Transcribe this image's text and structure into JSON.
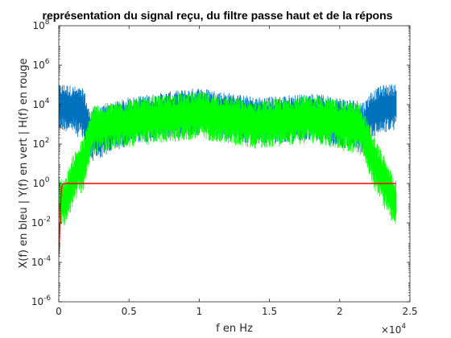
{
  "chart_data": {
    "type": "line",
    "title": "représentation du signal reçu, du filtre passe haut et de la répons",
    "xlabel": "f en Hz",
    "ylabel": "X(f) en bleu | Y(f) en vert | H(f) en rouge",
    "x_exponent_label": "×10",
    "x_exponent_power": "4",
    "xlim": [
      0,
      25000
    ],
    "ylim_log10": [
      -6,
      8
    ],
    "y_scale": "log",
    "grid": false,
    "x_ticks": [
      {
        "value": 0,
        "label": "0"
      },
      {
        "value": 5000,
        "label": "0.5"
      },
      {
        "value": 10000,
        "label": "1"
      },
      {
        "value": 15000,
        "label": "1.5"
      },
      {
        "value": 20000,
        "label": "2"
      },
      {
        "value": 25000,
        "label": "2.5"
      }
    ],
    "y_ticks": [
      {
        "exp": -6,
        "base": "10",
        "power": "-6"
      },
      {
        "exp": -4,
        "base": "10",
        "power": "-4"
      },
      {
        "exp": -2,
        "base": "10",
        "power": "-2"
      },
      {
        "exp": 0,
        "base": "10",
        "power": "0"
      },
      {
        "exp": 2,
        "base": "10",
        "power": "2"
      },
      {
        "exp": 4,
        "base": "10",
        "power": "4"
      },
      {
        "exp": 6,
        "base": "10",
        "power": "6"
      },
      {
        "exp": 8,
        "base": "10",
        "power": "8"
      }
    ],
    "series": [
      {
        "key": "X",
        "color": "#0072BD",
        "x_range": [
          0,
          24000
        ],
        "envelope_x": [
          0,
          300,
          1000,
          1800,
          2200,
          5000,
          10000,
          14000,
          18000,
          21800,
          22200,
          23000,
          24000
        ],
        "envelope_log10_center": [
          3.9,
          4.0,
          3.9,
          3.6,
          2.5,
          3.3,
          3.8,
          3.3,
          3.5,
          3.0,
          3.6,
          3.9,
          4.0
        ],
        "envelope_log10_spread": [
          0.9,
          0.9,
          0.9,
          1.0,
          1.0,
          0.9,
          0.9,
          0.9,
          0.9,
          1.0,
          0.9,
          0.9,
          0.9
        ]
      },
      {
        "key": "Y",
        "color": "#00FF00",
        "x_range": [
          0,
          24000
        ],
        "envelope_x": [
          0,
          500,
          1000,
          1800,
          2400,
          5000,
          10000,
          14000,
          18000,
          21500,
          22200,
          23000,
          24000
        ],
        "envelope_log10_center": [
          -0.7,
          -0.8,
          0.3,
          1.2,
          2.9,
          3.2,
          3.6,
          3.1,
          3.4,
          2.9,
          1.6,
          0.4,
          -0.9
        ],
        "envelope_log10_spread": [
          0.9,
          0.9,
          1.0,
          1.0,
          0.9,
          0.9,
          0.9,
          0.9,
          0.9,
          1.0,
          1.0,
          1.0,
          0.9
        ]
      },
      {
        "key": "H",
        "color": "#FF0000",
        "x": [
          0,
          30,
          60,
          90,
          120,
          160,
          200,
          300,
          500,
          1000,
          24000
        ],
        "y_log10": [
          -3.7,
          -3.2,
          -2.6,
          -1.9,
          -1.2,
          -0.6,
          -0.2,
          -0.03,
          0,
          0,
          0
        ]
      }
    ]
  }
}
